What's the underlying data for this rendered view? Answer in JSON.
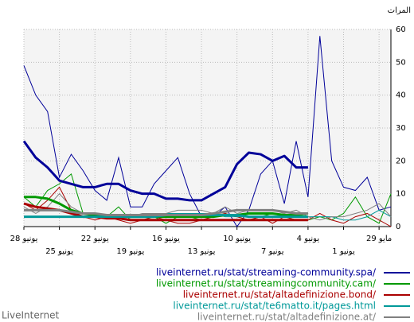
{
  "chart_data": {
    "type": "line",
    "title": "المرات",
    "footer": "LiveInternet",
    "categories": [
      "28 يونيو",
      null,
      null,
      "25 يونيو",
      null,
      null,
      "22 يونيو",
      null,
      null,
      "19 يونيو",
      null,
      null,
      "16 يونيو",
      null,
      null,
      "13 يونيو",
      null,
      null,
      "10 يونيو",
      null,
      null,
      "7 يونيو",
      null,
      null,
      "4 يونيو",
      null,
      null,
      "1 يونيو",
      null,
      null,
      "29 مايو",
      null
    ],
    "ylim": [
      0,
      60
    ],
    "yticks": [
      0,
      10,
      20,
      30,
      40,
      50,
      60
    ],
    "grid": true,
    "series": [
      {
        "name": "liveinternet.ru/stat/streaming-community.spa/",
        "color": "#000099",
        "values": [
          49,
          40,
          35,
          15,
          22,
          17,
          11,
          8,
          21,
          6,
          6,
          13,
          17,
          21,
          10,
          3,
          3,
          6,
          0,
          5,
          16,
          20,
          7,
          26,
          9,
          58,
          20,
          12,
          11,
          15,
          5,
          6
        ],
        "trend": [
          26,
          21,
          18,
          14,
          13,
          12,
          12,
          13,
          13,
          11,
          10,
          10,
          8.5,
          8.5,
          8,
          8,
          10,
          12,
          19,
          22.5,
          22,
          20,
          21.5,
          18,
          18
        ]
      },
      {
        "name": "liveinternet.ru/stat/streamingcommunity.cam/",
        "color": "#009900",
        "values": [
          9,
          6,
          11,
          13,
          16,
          4,
          4,
          3,
          6,
          2,
          2,
          3,
          1,
          3,
          3,
          2,
          3,
          4,
          3,
          2,
          3,
          4,
          3,
          2,
          2,
          3,
          2,
          4,
          9,
          3,
          1,
          10
        ],
        "trend": [
          9,
          9,
          8.5,
          7,
          5,
          4,
          3.5,
          3,
          3,
          3,
          3,
          3,
          3,
          3,
          3,
          3,
          3,
          3.5,
          3.5,
          4,
          4,
          4,
          3.5,
          3.5,
          4
        ]
      },
      {
        "name": "liveinternet.ru/stat/altadefinizione.bond/",
        "color": "#aa0000",
        "values": [
          7,
          5,
          8,
          12,
          5,
          3,
          2,
          3,
          2,
          1,
          2,
          3,
          2,
          1,
          1,
          2,
          3,
          4,
          3,
          2,
          3,
          1,
          3,
          2,
          2,
          4,
          2,
          1,
          3,
          4,
          2,
          0
        ],
        "trend": [
          7,
          6,
          5.5,
          5,
          4,
          3,
          3,
          2.5,
          2.5,
          2,
          2,
          2,
          2,
          2,
          2,
          2,
          2,
          2,
          2,
          2,
          2,
          2,
          2,
          2,
          2
        ]
      },
      {
        "name": "liveinternet.ru/stat/te6matto.it/pages.html",
        "color": "#009999",
        "values": [
          3,
          3,
          3,
          3,
          3,
          3,
          3,
          3,
          3,
          3,
          3,
          3,
          4,
          4,
          4,
          4,
          4,
          3,
          3,
          3,
          3,
          3,
          3,
          3,
          3,
          3,
          3,
          2,
          2,
          3,
          5,
          3
        ],
        "trend": [
          3,
          3,
          3,
          3,
          3,
          3,
          3,
          3,
          3,
          3,
          3,
          3,
          3.5,
          3.5,
          3.5,
          3.5,
          3.5,
          3.5,
          3.5,
          3,
          3,
          3,
          3,
          3,
          3
        ]
      },
      {
        "name": "liveinternet.ru/stat/altadefinizione.at/",
        "color": "#808080",
        "values": [
          6,
          4,
          6,
          10,
          6,
          4,
          4,
          3,
          3,
          3,
          4,
          4,
          4,
          5,
          5,
          5,
          4,
          6,
          4,
          5,
          5,
          5,
          4,
          5,
          3,
          2,
          3,
          3,
          4,
          5,
          7,
          3
        ],
        "trend": [
          5,
          5,
          5,
          5,
          4.5,
          4,
          4,
          3.5,
          3.5,
          3.5,
          3.5,
          3.5,
          3.5,
          3.5,
          3.5,
          3.5,
          4,
          4.5,
          5,
          5,
          5,
          5,
          4.5,
          4,
          4
        ]
      }
    ]
  }
}
